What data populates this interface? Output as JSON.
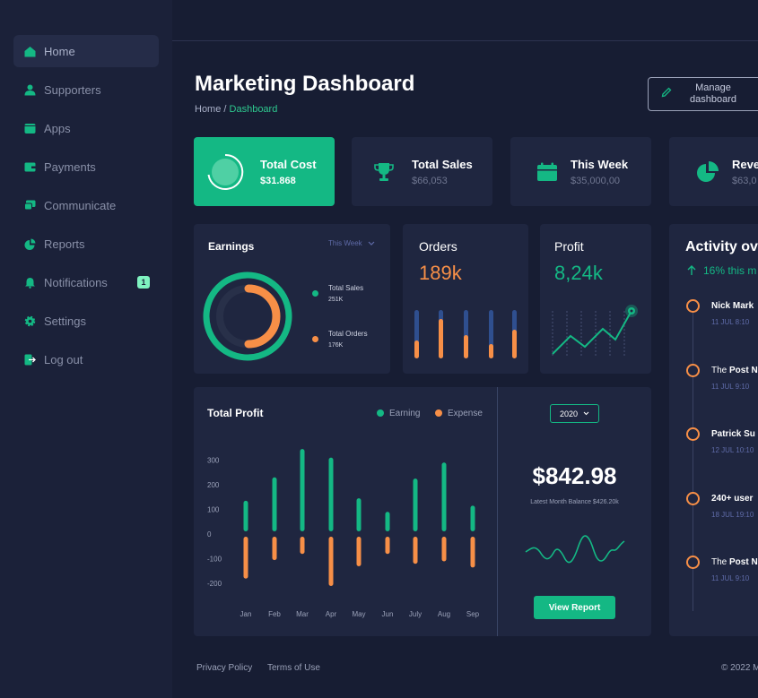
{
  "sidebar": {
    "items": [
      {
        "label": "Home",
        "icon": "home-icon",
        "active": true
      },
      {
        "label": "Supporters",
        "icon": "user-icon"
      },
      {
        "label": "Apps",
        "icon": "apps-icon"
      },
      {
        "label": "Payments",
        "icon": "wallet-icon"
      },
      {
        "label": "Communicate",
        "icon": "chat-icon"
      },
      {
        "label": "Reports",
        "icon": "pie-icon"
      },
      {
        "label": "Notifications",
        "icon": "bell-icon",
        "badge": "1"
      },
      {
        "label": "Settings",
        "icon": "gear-icon"
      },
      {
        "label": "Log out",
        "icon": "logout-icon"
      }
    ]
  },
  "header": {
    "title": "Marketing Dashboard",
    "breadcrumb_home": "Home",
    "breadcrumb_sep": " / ",
    "breadcrumb_current": "Dashboard",
    "manage_line1": "Manage",
    "manage_line2": "dashboard"
  },
  "stats": [
    {
      "title": "Total Cost",
      "value": "$31.868"
    },
    {
      "title": "Total Sales",
      "value": "$66,053"
    },
    {
      "title": "This Week",
      "value": "$35,000,00"
    },
    {
      "title": "Revenue",
      "value": "$63,0"
    }
  ],
  "earnings": {
    "title": "Earnings",
    "filter": "This Week",
    "legend": [
      {
        "label": "Total Sales",
        "value": "251K"
      },
      {
        "label": "Total Orders",
        "value": "176K"
      }
    ]
  },
  "orders": {
    "title": "Orders",
    "value": "189k"
  },
  "profit": {
    "title": "Profit",
    "value": "8,24k"
  },
  "total_profit": {
    "title": "Total Profit",
    "legend_earning": "Earning",
    "legend_expense": "Expense",
    "year": "2020",
    "balance": "$842.98",
    "balance_caption": "Latest Month Balance $426.20k",
    "view_report": "View Report"
  },
  "chart_data": {
    "type": "bar",
    "title": "Total Profit",
    "categories": [
      "Jan",
      "Feb",
      "Mar",
      "Apr",
      "May",
      "Jun",
      "July",
      "Aug",
      "Sep"
    ],
    "series": [
      {
        "name": "Earning",
        "values": [
          135,
          230,
          345,
          310,
          145,
          90,
          225,
          290,
          115
        ]
      },
      {
        "name": "Expense",
        "values": [
          -170,
          -95,
          -70,
          -200,
          -120,
          -70,
          -110,
          -100,
          -125
        ]
      }
    ],
    "yticks": [
      "300",
      "200",
      "100",
      "0",
      "-100",
      "-200"
    ],
    "ylim": [
      -250,
      350
    ]
  },
  "activity": {
    "title": "Activity ov",
    "trend": "16% this m",
    "items": [
      {
        "pre": "",
        "bold": "Nick Mark",
        "time": "11 JUL 8:10"
      },
      {
        "pre": "The ",
        "bold": "Post N",
        "time": "11 JUL 9:10"
      },
      {
        "pre": "",
        "bold": "Patrick Su",
        "time": "12 JUL 10:10"
      },
      {
        "pre": "",
        "bold": "240+ user",
        "time": "18 JUL 19:10"
      },
      {
        "pre": "The ",
        "bold": "Post N",
        "time": "11 JUL 9:10"
      }
    ]
  },
  "footer": {
    "privacy": "Privacy Policy",
    "terms": "Terms of Use",
    "copyright": "© 2022 M"
  },
  "colors": {
    "accent_green": "#14b884",
    "accent_orange": "#f78f47",
    "bar_blue": "#2f4f8f",
    "card_bg": "#1f2640",
    "page_bg": "#171d33"
  }
}
